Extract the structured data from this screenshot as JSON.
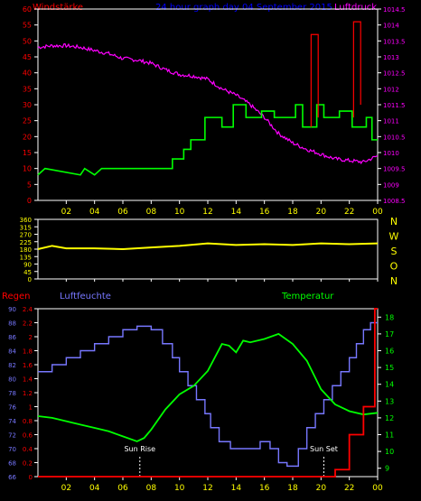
{
  "header": {
    "left_label": "Windstärke",
    "title": "24 hour graph day  04 September 2015",
    "right_label": "Luftdruck"
  },
  "x_ticks": [
    "02",
    "04",
    "06",
    "08",
    "10",
    "12",
    "14",
    "16",
    "18",
    "20",
    "22",
    "00"
  ],
  "colors": {
    "wind": "#00ff00",
    "pressure": "#ff00ff",
    "direction": "#ffff00",
    "rain": "#ff0000",
    "humidity": "#7777ff",
    "temperature": "#00ff00",
    "axis_left_top": "#ff0000",
    "axis_right_top": "#ff00ff",
    "axis_ticks_x": "#ffff00",
    "title": "#0000ff"
  },
  "chart_data": [
    {
      "type": "line",
      "name": "wind_pressure",
      "x_range": [
        0,
        24
      ],
      "left_axis": {
        "label": "Windstärke",
        "ticks": [
          0,
          5,
          10,
          15,
          20,
          25,
          30,
          35,
          40,
          45,
          50,
          55,
          60
        ],
        "range": [
          0,
          60
        ]
      },
      "right_axis": {
        "label": "Luftdruck",
        "ticks": [
          "1008.5",
          "1009",
          "1009.5",
          "1010",
          "1010.5",
          "1011",
          "1011.5",
          "1012",
          "1012.5",
          "1013",
          "1013.5",
          "1014",
          "1014.5"
        ],
        "range": [
          1008.5,
          1014.5
        ]
      },
      "series": [
        {
          "name": "Windstärke",
          "axis": "left",
          "step": true,
          "points": [
            [
              0,
              8
            ],
            [
              0.5,
              10
            ],
            [
              3,
              8
            ],
            [
              3.3,
              10
            ],
            [
              4,
              8
            ],
            [
              4.5,
              10
            ],
            [
              9.5,
              10
            ],
            [
              9.5,
              13
            ],
            [
              10.3,
              13
            ],
            [
              10.3,
              16
            ],
            [
              10.8,
              16
            ],
            [
              10.8,
              19
            ],
            [
              11.8,
              19
            ],
            [
              11.8,
              26
            ],
            [
              13,
              26
            ],
            [
              13,
              23
            ],
            [
              13.8,
              23
            ],
            [
              13.8,
              30
            ],
            [
              14.7,
              30
            ],
            [
              14.7,
              26
            ],
            [
              15.8,
              26
            ],
            [
              15.8,
              28
            ],
            [
              16.7,
              28
            ],
            [
              16.7,
              26
            ],
            [
              18.2,
              26
            ],
            [
              18.2,
              30
            ],
            [
              18.7,
              30
            ],
            [
              18.7,
              23
            ],
            [
              19.7,
              23
            ],
            [
              19.7,
              30
            ],
            [
              20.2,
              30
            ],
            [
              20.2,
              26
            ],
            [
              21.3,
              26
            ],
            [
              21.3,
              28
            ],
            [
              22.2,
              28
            ],
            [
              22.2,
              23
            ],
            [
              23.2,
              23
            ],
            [
              23.2,
              26
            ],
            [
              23.6,
              26
            ],
            [
              23.6,
              19
            ],
            [
              24,
              19
            ]
          ]
        },
        {
          "name": "Böen",
          "axis": "left",
          "color": "#ff0000",
          "points": [
            [
              19.3,
              23
            ],
            [
              19.3,
              52
            ],
            [
              19.8,
              52
            ],
            [
              19.8,
              26
            ]
          ]
        },
        {
          "name": "Böen2",
          "axis": "left",
          "color": "#ff0000",
          "points": [
            [
              22.3,
              26
            ],
            [
              22.3,
              56
            ],
            [
              22.8,
              56
            ],
            [
              22.8,
              30
            ]
          ]
        },
        {
          "name": "Luftdruck",
          "axis": "right",
          "noisy": true,
          "points": [
            [
              0,
              1013.3
            ],
            [
              1,
              1013.35
            ],
            [
              2,
              1013.35
            ],
            [
              3,
              1013.3
            ],
            [
              4,
              1013.2
            ],
            [
              5,
              1013.1
            ],
            [
              6,
              1012.95
            ],
            [
              7,
              1012.9
            ],
            [
              8,
              1012.8
            ],
            [
              9,
              1012.6
            ],
            [
              10,
              1012.45
            ],
            [
              11,
              1012.4
            ],
            [
              12,
              1012.3
            ],
            [
              13,
              1012.0
            ],
            [
              14,
              1011.8
            ],
            [
              15,
              1011.5
            ],
            [
              16,
              1011.1
            ],
            [
              17,
              1010.6
            ],
            [
              18,
              1010.3
            ],
            [
              19,
              1010.1
            ],
            [
              20,
              1009.95
            ],
            [
              21,
              1009.8
            ],
            [
              22,
              1009.75
            ],
            [
              23,
              1009.7
            ],
            [
              24,
              1009.9
            ]
          ]
        }
      ]
    },
    {
      "type": "line",
      "name": "wind_direction",
      "x_range": [
        0,
        24
      ],
      "left_axis": {
        "ticks": [
          0,
          45,
          90,
          135,
          180,
          225,
          270,
          315,
          360
        ],
        "range": [
          0,
          360
        ]
      },
      "right_labels": [
        "N",
        "W",
        "S",
        "O",
        "N"
      ],
      "series": [
        {
          "name": "Windrichtung",
          "points": [
            [
              0,
              180
            ],
            [
              1,
              200
            ],
            [
              2,
              185
            ],
            [
              4,
              185
            ],
            [
              6,
              180
            ],
            [
              8,
              190
            ],
            [
              10,
              200
            ],
            [
              12,
              215
            ],
            [
              14,
              205
            ],
            [
              16,
              210
            ],
            [
              18,
              205
            ],
            [
              20,
              215
            ],
            [
              22,
              210
            ],
            [
              24,
              215
            ]
          ]
        }
      ]
    },
    {
      "type": "line",
      "name": "rain_humidity_temperature",
      "x_range": [
        0,
        24
      ],
      "labels": {
        "rain": "Regen",
        "humidity": "Luftfeuchte",
        "temperature": "Temperatur",
        "sunrise": "Sun Rise",
        "sunset": "Sun Set"
      },
      "rain_axis": {
        "ticks": [
          "0",
          "0.2",
          "0.4",
          "0.6",
          "0.8",
          "1",
          "1.2",
          "1.4",
          "1.6",
          "1.8",
          "2",
          "2.2",
          "2.4"
        ],
        "range": [
          0,
          2.4
        ]
      },
      "humidity_axis": {
        "ticks": [
          66,
          68,
          70,
          72,
          74,
          76,
          78,
          80,
          82,
          84,
          86,
          88,
          90
        ],
        "range": [
          66,
          90
        ]
      },
      "temp_axis": {
        "ticks": [
          9,
          10,
          11,
          12,
          13,
          14,
          15,
          16,
          17,
          18
        ],
        "range": [
          8.5,
          18.5
        ]
      },
      "sunrise_x": 7.2,
      "sunset_x": 20.2,
      "series": [
        {
          "name": "Regen",
          "step": true,
          "points": [
            [
              0,
              0
            ],
            [
              21.0,
              0
            ],
            [
              21.0,
              0.1
            ],
            [
              21.5,
              0.1
            ],
            [
              21.5,
              0.1
            ],
            [
              22.0,
              0.1
            ],
            [
              22.0,
              0.6
            ],
            [
              23.0,
              0.6
            ],
            [
              23.0,
              1.0
            ],
            [
              23.8,
              1.0
            ],
            [
              23.8,
              2.4
            ],
            [
              24,
              2.4
            ]
          ]
        },
        {
          "name": "Luftfeuchte",
          "step": true,
          "points": [
            [
              0,
              81
            ],
            [
              1,
              81
            ],
            [
              1,
              82
            ],
            [
              2,
              82
            ],
            [
              2,
              83
            ],
            [
              3,
              83
            ],
            [
              3,
              84
            ],
            [
              4,
              84
            ],
            [
              4,
              85
            ],
            [
              5,
              85
            ],
            [
              5,
              86
            ],
            [
              6,
              86
            ],
            [
              6,
              87
            ],
            [
              7,
              87
            ],
            [
              7,
              87.5
            ],
            [
              8,
              87.5
            ],
            [
              8,
              87
            ],
            [
              8.8,
              87
            ],
            [
              8.8,
              85
            ],
            [
              9.5,
              85
            ],
            [
              9.5,
              83
            ],
            [
              10,
              83
            ],
            [
              10,
              81
            ],
            [
              10.6,
              81
            ],
            [
              10.6,
              79
            ],
            [
              11.2,
              79
            ],
            [
              11.2,
              77
            ],
            [
              11.8,
              77
            ],
            [
              11.8,
              75
            ],
            [
              12.2,
              75
            ],
            [
              12.2,
              73
            ],
            [
              12.8,
              73
            ],
            [
              12.8,
              71
            ],
            [
              13.6,
              71
            ],
            [
              13.6,
              70
            ],
            [
              15.7,
              70
            ],
            [
              15.7,
              71
            ],
            [
              16.4,
              71
            ],
            [
              16.4,
              70
            ],
            [
              17,
              70
            ],
            [
              17,
              68
            ],
            [
              17.6,
              68
            ],
            [
              17.6,
              67.5
            ],
            [
              18.4,
              67.5
            ],
            [
              18.4,
              70
            ],
            [
              19,
              70
            ],
            [
              19,
              73
            ],
            [
              19.6,
              73
            ],
            [
              19.6,
              75
            ],
            [
              20.2,
              75
            ],
            [
              20.2,
              77
            ],
            [
              20.8,
              77
            ],
            [
              20.8,
              79
            ],
            [
              21.4,
              79
            ],
            [
              21.4,
              81
            ],
            [
              22,
              81
            ],
            [
              22,
              83
            ],
            [
              22.5,
              83
            ],
            [
              22.5,
              85
            ],
            [
              23,
              85
            ],
            [
              23,
              87
            ],
            [
              23.5,
              87
            ],
            [
              23.5,
              88
            ],
            [
              24,
              88
            ]
          ]
        },
        {
          "name": "Temperatur",
          "points": [
            [
              0,
              12.1
            ],
            [
              1,
              12.0
            ],
            [
              2,
              11.8
            ],
            [
              3,
              11.6
            ],
            [
              4,
              11.4
            ],
            [
              5,
              11.2
            ],
            [
              6,
              10.9
            ],
            [
              7,
              10.6
            ],
            [
              7.5,
              10.8
            ],
            [
              8,
              11.3
            ],
            [
              9,
              12.5
            ],
            [
              10,
              13.4
            ],
            [
              11,
              13.9
            ],
            [
              12,
              14.8
            ],
            [
              12.5,
              15.6
            ],
            [
              13,
              16.4
            ],
            [
              13.5,
              16.3
            ],
            [
              14,
              15.9
            ],
            [
              14.5,
              16.6
            ],
            [
              15,
              16.5
            ],
            [
              16,
              16.7
            ],
            [
              17,
              17.0
            ],
            [
              18,
              16.4
            ],
            [
              19,
              15.4
            ],
            [
              20,
              13.7
            ],
            [
              21,
              12.8
            ],
            [
              22,
              12.4
            ],
            [
              23,
              12.2
            ],
            [
              24,
              12.3
            ]
          ]
        }
      ]
    }
  ]
}
